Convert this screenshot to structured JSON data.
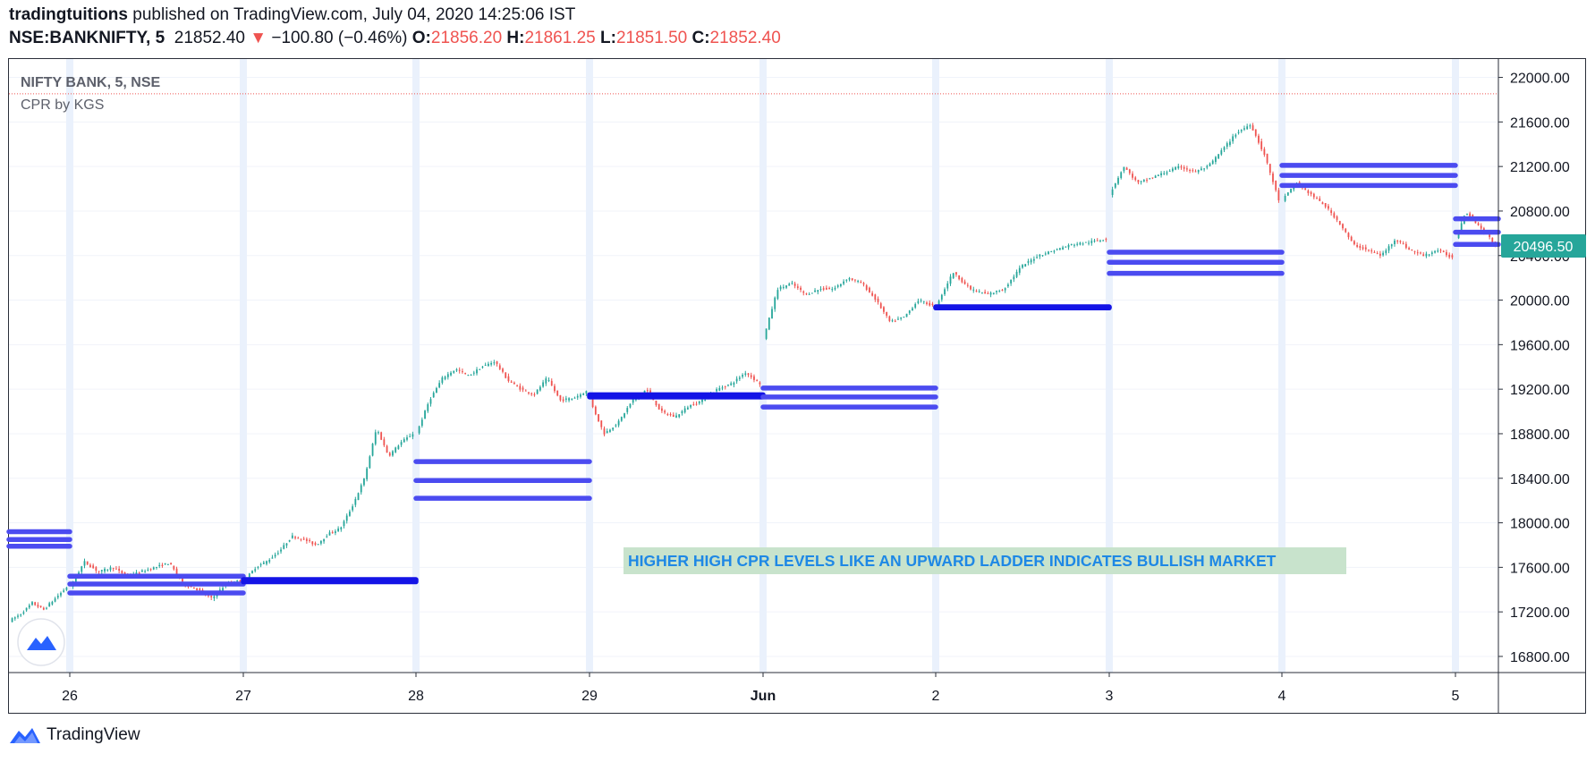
{
  "header": {
    "author": "tradingtuitions",
    "published_text": "published on TradingView.com, July 04, 2020 14:25:06 IST",
    "symbol": "NSE:BANKNIFTY, 5",
    "last": "21852.40",
    "change_arrow": "▼",
    "change": "−100.80 (−0.46%)",
    "o_label": "O:",
    "o_value": "21856.20",
    "h_label": "H:",
    "h_value": "21861.25",
    "l_label": "L:",
    "l_value": "21851.50",
    "c_label": "C:",
    "c_value": "21852.40"
  },
  "legend": {
    "series_title": "NIFTY BANK, 5, NSE",
    "indicator": "CPR by KGS"
  },
  "annotation": "HIGHER HIGH CPR LEVELS LIKE AN UPWARD LADDER INDICATES BULLISH MARKET",
  "price_tag": "20496.50",
  "footer": {
    "brand": "TradingView"
  },
  "colors": {
    "up": "#26a69a",
    "down": "#ef5350",
    "cpr": "#4b4bf0",
    "cpr_dark": "#1414e6",
    "tag": "#26a69a",
    "note_bg": "#c8e3cc",
    "note_text": "#1e88e5"
  },
  "chart_data": {
    "type": "candlestick",
    "title": "NIFTY BANK, 5, NSE",
    "xlabel": "",
    "ylabel": "",
    "ylim": [
      16600,
      22100
    ],
    "y_ticks": [
      22000,
      21600,
      21200,
      20800,
      20400,
      20000,
      19600,
      19200,
      18800,
      18400,
      18000,
      17600,
      17200,
      16800
    ],
    "y_tick_labels": [
      "22000.00",
      "21600.00",
      "21200.00",
      "20800.00",
      "20400.00",
      "20000.00",
      "19600.00",
      "19200.00",
      "18800.00",
      "18400.00",
      "18000.00",
      "17600.00",
      "17200.00",
      "16800.00"
    ],
    "x_categories": [
      "26",
      "27",
      "28",
      "29",
      "Jun",
      "2",
      "3",
      "4",
      "5"
    ],
    "grid": true,
    "last_price": 20496.5,
    "dotted_line": 21852.4,
    "cpr_levels": [
      {
        "day": "25",
        "values": [
          17920,
          17850,
          17790
        ]
      },
      {
        "day": "26",
        "values": [
          17520,
          17450,
          17370
        ]
      },
      {
        "day": "27",
        "values": [
          17490,
          17480,
          17470
        ]
      },
      {
        "day": "28",
        "values": [
          18550,
          18380,
          18220
        ]
      },
      {
        "day": "29",
        "values": [
          19150,
          19140,
          19130
        ]
      },
      {
        "day": "Jun",
        "values": [
          19210,
          19130,
          19040
        ]
      },
      {
        "day": "2",
        "values": [
          19940,
          19935,
          19930
        ]
      },
      {
        "day": "3",
        "values": [
          20430,
          20340,
          20240
        ]
      },
      {
        "day": "4",
        "values": [
          21210,
          21120,
          21030
        ]
      },
      {
        "day": "5",
        "values": [
          20730,
          20610,
          20500
        ]
      }
    ],
    "price_path": [
      {
        "day": "25",
        "points": [
          17120,
          17180,
          17280,
          17220,
          17320,
          17420
        ]
      },
      {
        "day": "26",
        "points": [
          17420,
          17650,
          17560,
          17600,
          17520,
          17560,
          17600,
          17640,
          17450,
          17400,
          17320,
          17450,
          17480
        ]
      },
      {
        "day": "27",
        "points": [
          17480,
          17600,
          17660,
          17750,
          17880,
          17850,
          17800,
          17900,
          17950,
          18150,
          18400,
          18850,
          18600,
          18720,
          18800
        ]
      },
      {
        "day": "28",
        "points": [
          18800,
          19100,
          19300,
          19380,
          19320,
          19400,
          19450,
          19280,
          19200,
          19150,
          19300,
          19100,
          19120,
          19180
        ]
      },
      {
        "day": "29",
        "points": [
          19100,
          18800,
          18900,
          19100,
          19200,
          19000,
          18950,
          19050,
          19100,
          19200,
          19250,
          19350,
          19250
        ]
      },
      {
        "day": "Jun",
        "points": [
          19650,
          20100,
          20150,
          20050,
          20100,
          20100,
          20200,
          20150,
          20000,
          19800,
          19850,
          20000,
          19950
        ]
      },
      {
        "day": "2",
        "points": [
          19950,
          20250,
          20100,
          20050,
          20100,
          20300,
          20400,
          20450,
          20500,
          20520,
          20550
        ]
      },
      {
        "day": "3",
        "points": [
          20950,
          21200,
          21050,
          21100,
          21150,
          21200,
          21150,
          21200,
          21350,
          21500,
          21580,
          21300,
          20900
        ]
      },
      {
        "day": "4",
        "points": [
          20900,
          21050,
          20950,
          20850,
          20700,
          20500,
          20450,
          20400,
          20550,
          20450,
          20400,
          20450,
          20380
        ]
      },
      {
        "day": "5",
        "points": [
          20550,
          20800,
          20700,
          20600,
          20500
        ]
      }
    ]
  }
}
